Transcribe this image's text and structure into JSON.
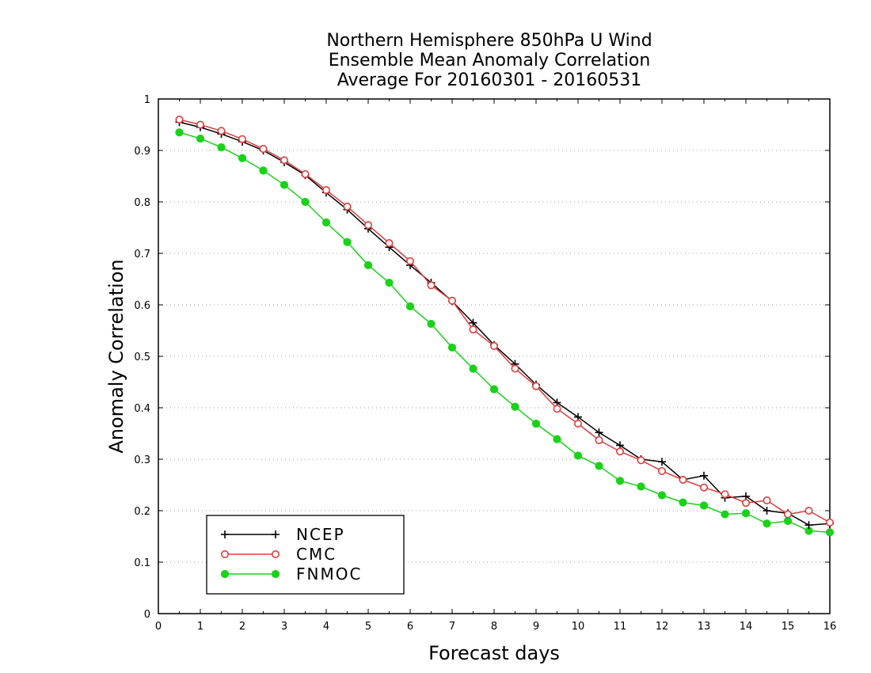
{
  "chart_data": {
    "type": "line",
    "title": [
      "Northern Hemisphere 850hPa U Wind",
      "Ensemble Mean Anomaly Correlation",
      "Average For 20160301 - 20160531"
    ],
    "xlabel": "Forecast days",
    "ylabel": "Anomaly Correlation",
    "xlim": [
      0,
      16
    ],
    "ylim": [
      0,
      1
    ],
    "xticks": [
      "0",
      "1",
      "2",
      "3",
      "4",
      "5",
      "6",
      "7",
      "8",
      "9",
      "10",
      "11",
      "12",
      "13",
      "14",
      "15",
      "16"
    ],
    "yticks": [
      "0",
      "0.1",
      "0.2",
      "0.3",
      "0.4",
      "0.5",
      "0.6",
      "0.7",
      "0.8",
      "0.9",
      "1"
    ],
    "grid": "horizontal dotted",
    "legend_position": "bottom-left",
    "x": [
      0.5,
      1,
      1.5,
      2,
      2.5,
      3,
      3.5,
      4,
      4.5,
      5,
      5.5,
      6,
      6.5,
      7,
      7.5,
      8,
      8.5,
      9,
      9.5,
      10,
      10.5,
      11,
      11.5,
      12,
      12.5,
      13,
      13.5,
      14,
      14.5,
      15,
      15.5,
      16
    ],
    "series": [
      {
        "name": "NCEP",
        "color": "#000000",
        "marker": "plus",
        "values": [
          0.955,
          0.945,
          0.932,
          0.917,
          0.9,
          0.877,
          0.852,
          0.818,
          0.785,
          0.748,
          0.712,
          0.677,
          0.643,
          0.607,
          0.565,
          0.522,
          0.485,
          0.445,
          0.41,
          0.382,
          0.352,
          0.327,
          0.3,
          0.295,
          0.26,
          0.268,
          0.225,
          0.228,
          0.2,
          0.195,
          0.172,
          0.175
        ]
      },
      {
        "name": "CMC",
        "color": "#e03c3c",
        "marker": "open-circle",
        "values": [
          0.96,
          0.95,
          0.938,
          0.922,
          0.903,
          0.881,
          0.854,
          0.823,
          0.791,
          0.755,
          0.72,
          0.685,
          0.638,
          0.608,
          0.552,
          0.52,
          0.476,
          0.442,
          0.398,
          0.369,
          0.337,
          0.315,
          0.298,
          0.277,
          0.26,
          0.245,
          0.232,
          0.215,
          0.22,
          0.193,
          0.2,
          0.177
        ]
      },
      {
        "name": "FNMOC",
        "color": "#19d219",
        "marker": "filled-circle",
        "values": [
          0.935,
          0.923,
          0.906,
          0.885,
          0.861,
          0.833,
          0.8,
          0.76,
          0.722,
          0.677,
          0.643,
          0.597,
          0.563,
          0.517,
          0.476,
          0.436,
          0.402,
          0.369,
          0.339,
          0.307,
          0.287,
          0.258,
          0.247,
          0.23,
          0.216,
          0.21,
          0.193,
          0.195,
          0.175,
          0.18,
          0.161,
          0.158
        ]
      }
    ]
  }
}
